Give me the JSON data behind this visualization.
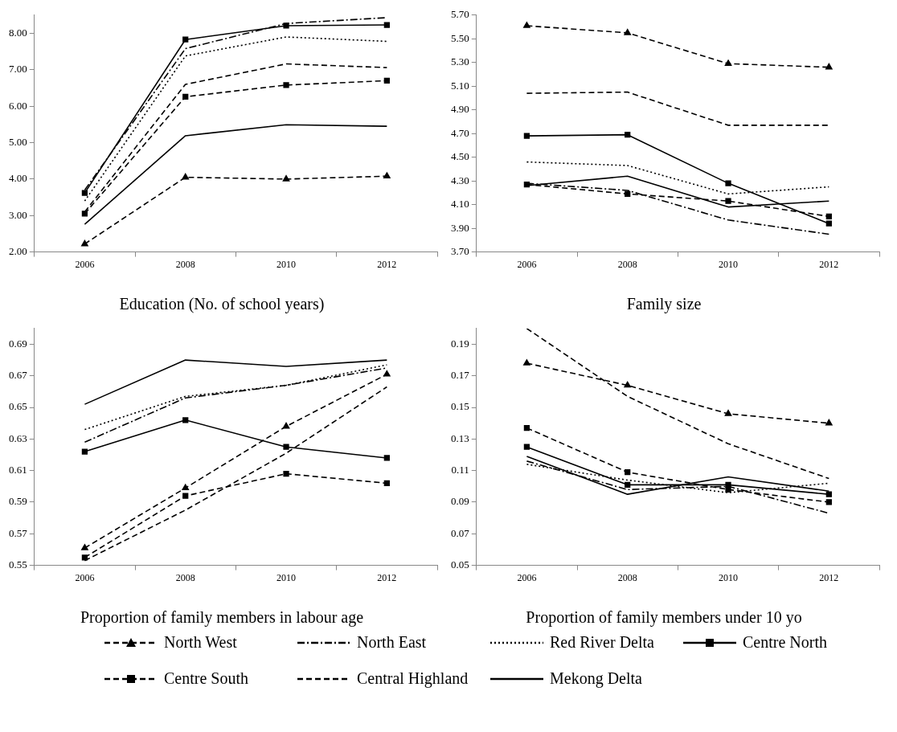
{
  "chart_data": [
    {
      "type": "line",
      "title": "Education (No. of school years)",
      "categories": [
        "2006",
        "2008",
        "2010",
        "2012"
      ],
      "ylim": [
        2,
        8.5
      ],
      "legend": "bottom",
      "yticks": [
        {
          "value": 2,
          "label": "2.00"
        },
        {
          "value": 3,
          "label": "3.00"
        },
        {
          "value": 4,
          "label": "4.00"
        },
        {
          "value": 5,
          "label": "5.00"
        },
        {
          "value": 6,
          "label": "6.00"
        },
        {
          "value": 7,
          "label": "7.00"
        },
        {
          "value": 8,
          "label": "8.00"
        }
      ],
      "grid": false,
      "series": [
        {
          "name": "North West",
          "color": "#000000",
          "line_style": "dashed",
          "marker": "triangle",
          "values": [
            2.22,
            4.05,
            4.0,
            4.08
          ]
        },
        {
          "name": "North East",
          "color": "#000000",
          "line_style": "dashdot",
          "marker": "none",
          "values": [
            3.7,
            7.58,
            8.27,
            8.43
          ]
        },
        {
          "name": "Red River Delta",
          "color": "#000000",
          "line_style": "dotted",
          "marker": "none",
          "values": [
            3.4,
            7.38,
            7.9,
            7.78
          ]
        },
        {
          "name": "Centre North",
          "color": "#000000",
          "line_style": "solid",
          "marker": "square",
          "values": [
            3.62,
            7.83,
            8.21,
            8.23
          ]
        },
        {
          "name": "Centre South",
          "color": "#000000",
          "line_style": "dashed",
          "marker": "square",
          "values": [
            3.05,
            6.26,
            6.58,
            6.7
          ]
        },
        {
          "name": "Central Highland",
          "color": "#000000",
          "line_style": "dashed",
          "marker": "none",
          "values": [
            3.1,
            6.6,
            7.16,
            7.06
          ]
        },
        {
          "name": "Mekong Delta",
          "color": "#000000",
          "line_style": "solid",
          "marker": "none",
          "values": [
            2.76,
            5.19,
            5.49,
            5.45
          ]
        }
      ]
    },
    {
      "type": "line",
      "title": "Family size",
      "categories": [
        "2006",
        "2008",
        "2010",
        "2012"
      ],
      "ylim": [
        3.7,
        5.7
      ],
      "yticks": [
        {
          "value": 3.7,
          "label": "3.70"
        },
        {
          "value": 3.9,
          "label": "3.90"
        },
        {
          "value": 4.1,
          "label": "4.10"
        },
        {
          "value": 4.3,
          "label": "4.30"
        },
        {
          "value": 4.5,
          "label": "4.50"
        },
        {
          "value": 4.7,
          "label": "4.70"
        },
        {
          "value": 4.9,
          "label": "4.90"
        },
        {
          "value": 5.1,
          "label": "5.10"
        },
        {
          "value": 5.3,
          "label": "5.30"
        },
        {
          "value": 5.5,
          "label": "5.50"
        },
        {
          "value": 5.7,
          "label": "5.70"
        }
      ],
      "grid": false,
      "series": [
        {
          "color": "#000000",
          "line_style": "dashed",
          "marker": "triangle",
          "values": [
            5.61,
            5.55,
            5.29,
            5.26
          ]
        },
        {
          "color": "#000000",
          "line_style": "dashdot",
          "marker": "none",
          "values": [
            4.28,
            4.22,
            3.97,
            3.85
          ]
        },
        {
          "color": "#000000",
          "line_style": "dotted",
          "marker": "none",
          "values": [
            4.46,
            4.43,
            4.19,
            4.25
          ]
        },
        {
          "color": "#000000",
          "line_style": "solid",
          "marker": "square",
          "values": [
            4.68,
            4.69,
            4.28,
            3.94
          ]
        },
        {
          "color": "#000000",
          "line_style": "dashed",
          "marker": "square",
          "values": [
            4.27,
            4.19,
            4.13,
            4.0
          ]
        },
        {
          "color": "#000000",
          "line_style": "dashed",
          "marker": "none",
          "values": [
            5.04,
            5.05,
            4.77,
            4.77
          ]
        },
        {
          "color": "#000000",
          "line_style": "solid",
          "marker": "none",
          "values": [
            4.26,
            4.34,
            4.08,
            4.13
          ]
        }
      ]
    },
    {
      "type": "line",
      "title": "Proportion of family members in labour age",
      "categories": [
        "2006",
        "2008",
        "2010",
        "2012"
      ],
      "ylim": [
        0.55,
        0.7
      ],
      "yticks": [
        0.55,
        0.57,
        0.59,
        0.61,
        0.63,
        0.65,
        0.67,
        0.69
      ],
      "grid": false,
      "series": [
        {
          "color": "#000000",
          "line_style": "dashed",
          "marker": "triangle",
          "values": [
            0.561,
            0.599,
            0.638,
            0.671
          ]
        },
        {
          "color": "#000000",
          "line_style": "dashdot",
          "marker": "none",
          "values": [
            0.628,
            0.656,
            0.664,
            0.675
          ]
        },
        {
          "color": "#000000",
          "line_style": "dotted",
          "marker": "none",
          "values": [
            0.636,
            0.657,
            0.664,
            0.677
          ]
        },
        {
          "color": "#000000",
          "line_style": "solid",
          "marker": "square",
          "values": [
            0.622,
            0.642,
            0.625,
            0.618
          ]
        },
        {
          "color": "#000000",
          "line_style": "dashed",
          "marker": "square",
          "values": [
            0.555,
            0.594,
            0.608,
            0.602
          ]
        },
        {
          "color": "#000000",
          "line_style": "dashed",
          "marker": "none",
          "values": [
            0.553,
            0.585,
            0.621,
            0.663
          ]
        },
        {
          "color": "#000000",
          "line_style": "solid",
          "marker": "none",
          "values": [
            0.652,
            0.68,
            0.676,
            0.68
          ]
        }
      ]
    },
    {
      "type": "line",
      "title": "Proportion of family members under 10 yo",
      "categories": [
        "2006",
        "2008",
        "2010",
        "2012"
      ],
      "ylim": [
        0.05,
        0.2
      ],
      "yticks": [
        0.05,
        0.07,
        0.09,
        0.11,
        0.13,
        0.15,
        0.17,
        0.19
      ],
      "grid": false,
      "series": [
        {
          "color": "#000000",
          "line_style": "dashed",
          "marker": "triangle",
          "values": [
            0.178,
            0.164,
            0.146,
            0.14
          ]
        },
        {
          "color": "#000000",
          "line_style": "dashdot",
          "marker": "none",
          "values": [
            0.116,
            0.098,
            0.1,
            0.083
          ]
        },
        {
          "color": "#000000",
          "line_style": "dotted",
          "marker": "none",
          "values": [
            0.114,
            0.104,
            0.096,
            0.102
          ]
        },
        {
          "color": "#000000",
          "line_style": "solid",
          "marker": "square",
          "values": [
            0.125,
            0.101,
            0.101,
            0.095
          ]
        },
        {
          "color": "#000000",
          "line_style": "dashed",
          "marker": "square",
          "values": [
            0.137,
            0.109,
            0.098,
            0.09
          ]
        },
        {
          "color": "#000000",
          "line_style": "dashed",
          "marker": "none",
          "values": [
            0.2,
            0.157,
            0.127,
            0.105
          ]
        },
        {
          "color": "#000000",
          "line_style": "solid",
          "marker": "none",
          "values": [
            0.119,
            0.095,
            0.106,
            0.097
          ]
        }
      ]
    }
  ]
}
